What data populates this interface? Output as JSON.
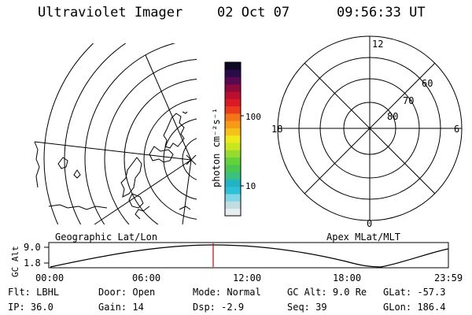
{
  "header": {
    "instrument": "Ultraviolet Imager",
    "date": "02 Oct 07",
    "time": "09:56:33 UT"
  },
  "colorbar": {
    "unit_label": "photon cm⁻²s⁻¹",
    "ticks": [
      "100",
      "10"
    ],
    "colors": [
      "#e8eef0",
      "#c0dde2",
      "#7fd6e6",
      "#2ec0d8",
      "#22b3c5",
      "#3ac080",
      "#48c84e",
      "#62d23a",
      "#96dc2e",
      "#c8e61e",
      "#ecea18",
      "#f6c21a",
      "#f89a18",
      "#f47418",
      "#ea3c1c",
      "#dc1a26",
      "#bc0f30",
      "#8e0a3a",
      "#580a50",
      "#2a0b4a",
      "#0b0a22"
    ]
  },
  "left_panel": {
    "title": "Geographic Lat/Lon"
  },
  "right_panel": {
    "title": "Apex MLat/MLT",
    "mlt_labels": {
      "top": "12",
      "bottom": "0",
      "left": "18",
      "right": "6"
    },
    "lat_labels": [
      "60",
      "70",
      "80"
    ]
  },
  "altitude_plot": {
    "ylabel": "GC Alt",
    "yticks": [
      "9.0",
      "1.8"
    ],
    "xticks": [
      "00:00",
      "06:00",
      "12:00",
      "18:00",
      "23:59"
    ]
  },
  "status": {
    "row1": [
      {
        "label": "Flt:",
        "value": "LBHL"
      },
      {
        "label": "Door:",
        "value": "Open"
      },
      {
        "label": "Mode:",
        "value": "Normal"
      },
      {
        "label": "GC Alt:",
        "value": "9.0 Re"
      },
      {
        "label": "GLat:",
        "value": "-57.3"
      }
    ],
    "row2": [
      {
        "label": "IP:",
        "value": "36.0"
      },
      {
        "label": "Gain:",
        "value": "14"
      },
      {
        "label": "Dsp:",
        "value": "-2.9"
      },
      {
        "label": "Seq:",
        "value": "39"
      },
      {
        "label": "GLon:",
        "value": "186.4"
      }
    ]
  }
}
